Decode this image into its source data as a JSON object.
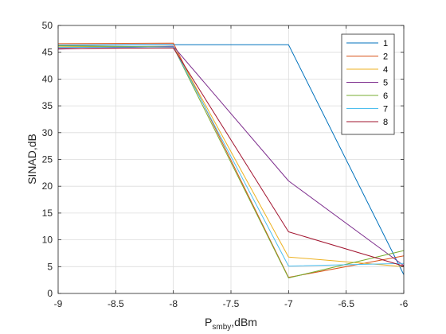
{
  "chart_data": {
    "type": "line",
    "title": "",
    "xlabel_main": "P",
    "xlabel_sub": "smby",
    "xlabel_suffix": ",dBm",
    "ylabel": "SINAD,dB",
    "xlim": [
      -9,
      -6
    ],
    "ylim": [
      0,
      50
    ],
    "xticks": [
      -9,
      -8.5,
      -8,
      -7.5,
      -7,
      -6.5,
      -6
    ],
    "yticks": [
      0,
      5,
      10,
      15,
      20,
      25,
      30,
      35,
      40,
      45,
      50
    ],
    "grid": true,
    "legend_position": "top-right",
    "x": [
      -9,
      -8,
      -7,
      -6
    ],
    "series": [
      {
        "name": "1",
        "color": "#0072BD",
        "values": [
          46.3,
          46.4,
          46.4,
          3.5
        ]
      },
      {
        "name": "2",
        "color": "#D95319",
        "values": [
          46.6,
          46.7,
          3.0,
          7.0
        ]
      },
      {
        "name": "4",
        "color": "#EDB120",
        "values": [
          46.0,
          46.1,
          6.8,
          5.0
        ]
      },
      {
        "name": "5",
        "color": "#7E2F8E",
        "values": [
          45.6,
          46.1,
          21.0,
          5.2
        ]
      },
      {
        "name": "6",
        "color": "#77AC30",
        "values": [
          46.2,
          46.0,
          2.9,
          8.0
        ]
      },
      {
        "name": "7",
        "color": "#4DBEEE",
        "values": [
          45.9,
          46.0,
          5.1,
          5.6
        ]
      },
      {
        "name": "8",
        "color": "#A2142F",
        "values": [
          45.7,
          45.8,
          11.5,
          5.1
        ]
      }
    ]
  }
}
